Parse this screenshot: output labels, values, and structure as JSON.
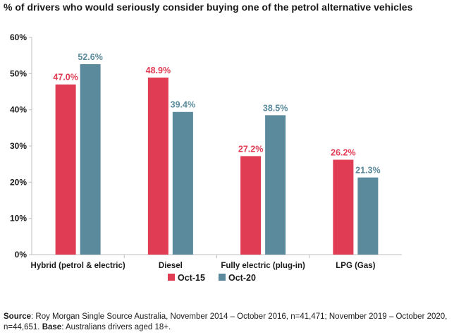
{
  "title": "% of drivers who would seriously consider buying one of the petrol alternative vehicles",
  "chart_data": {
    "type": "bar",
    "categories": [
      "Hybrid (petrol & electric)",
      "Diesel",
      "Fully electric (plug-in)",
      "LPG (Gas)"
    ],
    "series": [
      {
        "name": "Oct-15",
        "values": [
          47.0,
          48.9,
          27.2,
          26.2
        ],
        "labels": [
          "47.0%",
          "48.9%",
          "27.2%",
          "26.2%"
        ],
        "color": "#e03c53"
      },
      {
        "name": "Oct-20",
        "values": [
          52.6,
          39.4,
          38.5,
          21.3
        ],
        "labels": [
          "52.6%",
          "39.4%",
          "38.5%",
          "21.3%"
        ],
        "color": "#5a8a9c"
      }
    ],
    "ylim": [
      0,
      60
    ],
    "yticks": [
      "0%",
      "10%",
      "20%",
      "30%",
      "40%",
      "50%",
      "60%"
    ],
    "legend": "bottom-center",
    "grid": false
  },
  "source": {
    "label": "Source",
    "text": ": Roy Morgan Single Source Australia, November 2014 – October 2016, n=41,471; November 2019 – October 2020, n=44,651. ",
    "base_label": "Base",
    "base_text": ": Australians drivers aged 18+."
  }
}
